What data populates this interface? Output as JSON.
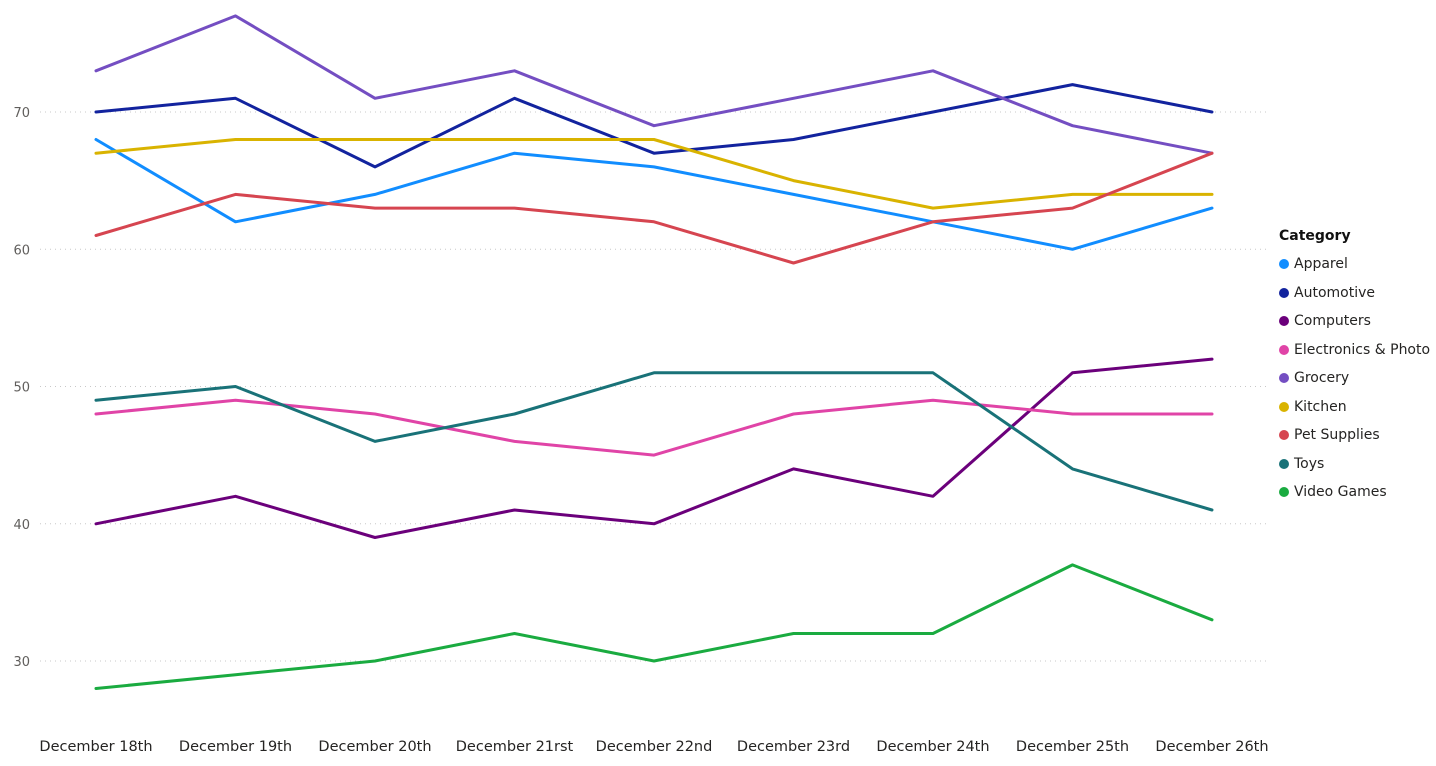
{
  "chart_data": {
    "type": "line",
    "title": "",
    "xlabel": "",
    "ylabel": "",
    "x": [
      "December 18th",
      "December 19th",
      "December 20th",
      "December 21rst",
      "December 22nd",
      "December 23rd",
      "December 24th",
      "December 25th",
      "December 26th"
    ],
    "yticks": [
      30,
      40,
      50,
      60,
      70
    ],
    "ylim": [
      25,
      77.5
    ],
    "grid": "horizontal dotted",
    "legend_title": "Category",
    "legend_position": "right",
    "series": [
      {
        "name": "Apparel",
        "color": "#118DFF",
        "values": [
          68,
          62,
          64,
          67,
          66,
          64,
          62,
          60,
          63
        ]
      },
      {
        "name": "Automotive",
        "color": "#12239E",
        "values": [
          70,
          71,
          66,
          71,
          67,
          68,
          70,
          72,
          70
        ]
      },
      {
        "name": "Computers",
        "color": "#6B007B",
        "values": [
          40,
          42,
          39,
          41,
          40,
          44,
          42,
          51,
          52
        ]
      },
      {
        "name": "Electronics & Photo",
        "color": "#E044A7",
        "values": [
          48,
          49,
          48,
          46,
          45,
          48,
          49,
          48,
          48
        ]
      },
      {
        "name": "Grocery",
        "color": "#744EC2",
        "values": [
          73,
          77,
          71,
          73,
          69,
          71,
          73,
          69,
          67
        ]
      },
      {
        "name": "Kitchen",
        "color": "#D9B300",
        "values": [
          67,
          68,
          68,
          68,
          68,
          65,
          63,
          64,
          64
        ]
      },
      {
        "name": "Pet Supplies",
        "color": "#D64550",
        "values": [
          61,
          64,
          63,
          63,
          62,
          59,
          62,
          63,
          67
        ]
      },
      {
        "name": "Toys",
        "color": "#197278",
        "values": [
          49,
          50,
          46,
          48,
          51,
          51,
          51,
          44,
          41
        ]
      },
      {
        "name": "Video Games",
        "color": "#1AAB40",
        "values": [
          28,
          29,
          30,
          32,
          30,
          32,
          32,
          37,
          33
        ]
      }
    ]
  }
}
